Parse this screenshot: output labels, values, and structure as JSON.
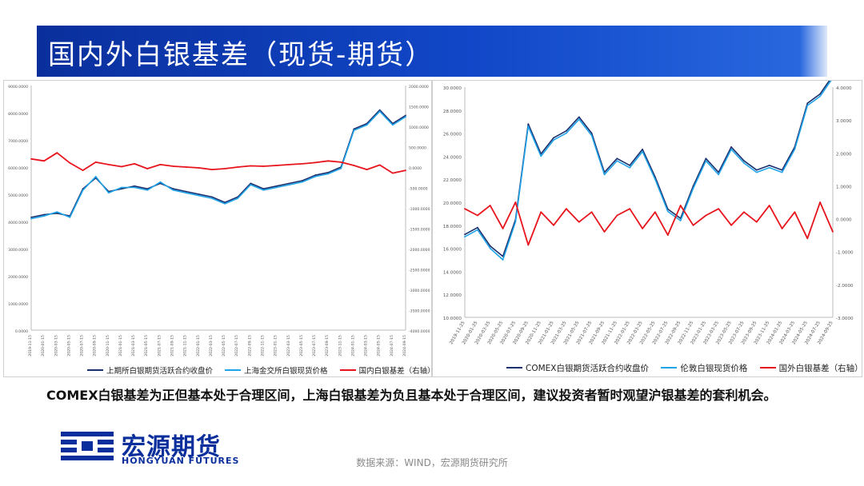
{
  "slide": {
    "title": "国内外白银基差（现货-期货）",
    "comment": "COMEX白银基差为正但基本处于合理区间，上海白银基差为负且基本处于合理区间，建议投资者暂时观望沪银基差的套利机会。",
    "source": "数据来源：WIND，宏源期货研究所",
    "logo_cn": "宏源期货",
    "logo_en": "HONGYUAN FUTURES",
    "colors": {
      "brand_blue": "#0a2f9c",
      "red": "#e8141c",
      "light_blue": "#1fa3e8",
      "dark_navy": "#1a2f6e"
    }
  },
  "chart_data": [
    {
      "type": "line",
      "title": "",
      "x_ticks": [
        "2019-11-15",
        "2020-01-15",
        "2020-03-15",
        "2020-05-15",
        "2020-07-15",
        "2020-09-15",
        "2020-11-15",
        "2021-01-15",
        "2021-03-15",
        "2021-05-15",
        "2021-07-15",
        "2021-09-15",
        "2021-11-15",
        "2022-01-15",
        "2022-03-15",
        "2022-05-15",
        "2022-07-15",
        "2022-09-15",
        "2022-11-15",
        "2023-01-15",
        "2023-03-15",
        "2023-05-15",
        "2023-07-15",
        "2023-09-15",
        "2023-11-15",
        "2024-01-15",
        "2024-03-15",
        "2024-05-15",
        "2024-07-15",
        "2024-09-15"
      ],
      "y_left": {
        "ticks": [
          "9000.0000",
          "8000.0000",
          "7000.0000",
          "6000.0000",
          "5000.0000",
          "4000.0000",
          "3000.0000",
          "2000.0000",
          "1000.0000",
          "0.0000"
        ],
        "lim": [
          0,
          9000
        ]
      },
      "y_right": {
        "ticks": [
          "2000.0000",
          "1500.0000",
          "1000.0000",
          "500.0000",
          "0.0000",
          "-500.0000",
          "-1000.0000",
          "-1500.0000",
          "-2000.0000",
          "-2500.0000",
          "-3000.0000",
          "-3500.0000",
          "-4000.0000"
        ],
        "lim": [
          -4000,
          2000
        ]
      },
      "series": [
        {
          "name": "上期所白银期货活跃合约收盘价",
          "axis": "left",
          "color": "#1a2f6e",
          "values": [
            4150,
            4250,
            4300,
            4200,
            5200,
            5600,
            5100,
            5200,
            5300,
            5200,
            5400,
            5200,
            5100,
            5000,
            4900,
            4700,
            4900,
            5400,
            5200,
            5300,
            5400,
            5500,
            5700,
            5800,
            6000,
            7400,
            7600,
            8100,
            7600,
            7900
          ]
        },
        {
          "name": "上海金交所白银现货价格",
          "axis": "left",
          "color": "#1fa3e8",
          "values": [
            4100,
            4200,
            4350,
            4150,
            5150,
            5650,
            5050,
            5250,
            5250,
            5150,
            5450,
            5150,
            5050,
            4950,
            4850,
            4650,
            4850,
            5350,
            5150,
            5250,
            5350,
            5450,
            5650,
            5750,
            5950,
            7350,
            7550,
            8050,
            7550,
            7850
          ]
        },
        {
          "name": "国内白银基差（右轴）",
          "axis": "right",
          "color": "#e8141c",
          "values": [
            200,
            150,
            350,
            100,
            -80,
            120,
            60,
            10,
            80,
            -40,
            60,
            20,
            0,
            -20,
            -60,
            -40,
            0,
            30,
            20,
            40,
            60,
            80,
            110,
            150,
            120,
            40,
            -60,
            50,
            -150,
            -80
          ]
        }
      ]
    },
    {
      "type": "line",
      "title": "",
      "x_ticks": [
        "2019-11-25",
        "2020-01-25",
        "2020-03-25",
        "2020-05-25",
        "2020-07-25",
        "2020-09-25",
        "2020-11-25",
        "2021-01-25",
        "2021-03-25",
        "2021-05-25",
        "2021-07-25",
        "2021-09-25",
        "2021-11-25",
        "2022-01-25",
        "2022-03-25",
        "2022-05-25",
        "2022-07-25",
        "2022-09-25",
        "2022-11-25",
        "2023-01-25",
        "2023-03-25",
        "2023-05-25",
        "2023-07-25",
        "2023-09-25",
        "2023-11-25",
        "2024-01-25",
        "2024-03-25",
        "2024-05-25",
        "2024-07-25",
        "2024-09-25"
      ],
      "y_left": {
        "ticks": [
          "30.0000",
          "28.0000",
          "26.0000",
          "24.0000",
          "22.0000",
          "20.0000",
          "18.0000",
          "16.0000",
          "14.0000",
          "12.0000",
          "10.0000"
        ],
        "lim": [
          10,
          30
        ]
      },
      "y_right": {
        "ticks": [
          "4.0000",
          "3.0000",
          "2.0000",
          "1.0000",
          "0.0000",
          "-1.0000",
          "-2.0000",
          "-3.0000"
        ],
        "lim": [
          -3,
          4
        ]
      },
      "series": [
        {
          "name": "COMEX白银期货活跃合约收盘价",
          "axis": "left",
          "color": "#1a2f6e",
          "values": [
            17.2,
            17.8,
            16.2,
            15.3,
            18.5,
            26.8,
            24.2,
            25.6,
            26.2,
            27.4,
            26.0,
            22.6,
            23.8,
            23.2,
            24.6,
            22.2,
            19.4,
            18.6,
            21.4,
            23.8,
            22.6,
            24.8,
            23.6,
            22.8,
            23.2,
            22.8,
            24.8,
            28.6,
            29.4,
            31.0
          ]
        },
        {
          "name": "伦敦白银现货价格",
          "axis": "left",
          "color": "#1fa3e8",
          "values": [
            17.0,
            17.6,
            16.0,
            15.0,
            18.3,
            26.6,
            24.0,
            25.4,
            26.0,
            27.2,
            25.8,
            22.4,
            23.6,
            23.0,
            24.4,
            22.0,
            19.2,
            18.4,
            21.2,
            23.6,
            22.4,
            24.6,
            23.4,
            22.6,
            23.0,
            22.6,
            24.6,
            28.4,
            29.2,
            30.8
          ]
        },
        {
          "name": "国外白银基差（右轴）",
          "axis": "right",
          "color": "#e8141c",
          "values": [
            0.3,
            0.1,
            0.4,
            -0.3,
            0.5,
            -0.8,
            0.2,
            -0.2,
            0.3,
            -0.1,
            0.2,
            -0.4,
            0.1,
            0.3,
            -0.3,
            0.2,
            -0.5,
            0.4,
            -0.2,
            0.1,
            0.3,
            -0.2,
            0.2,
            -0.1,
            0.4,
            -0.3,
            0.2,
            -0.6,
            0.5,
            -0.4
          ]
        }
      ]
    }
  ]
}
